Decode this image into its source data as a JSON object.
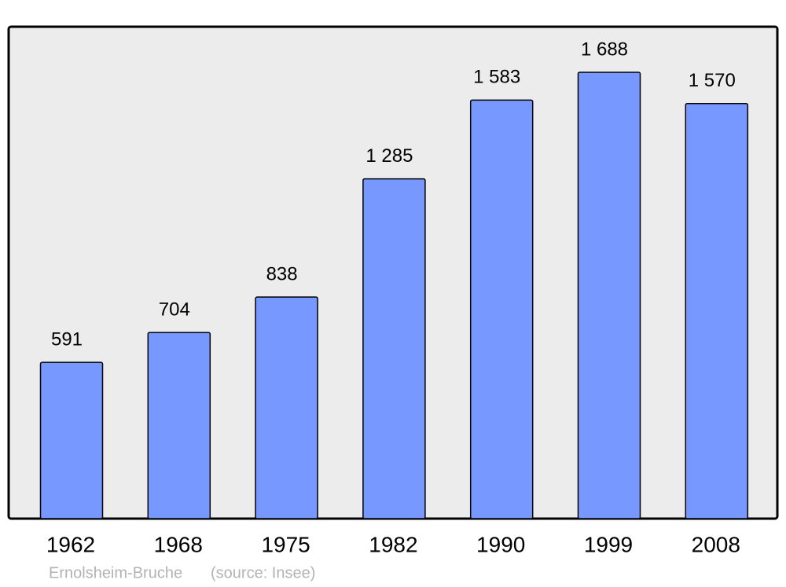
{
  "chart_data": {
    "type": "bar",
    "categories": [
      "1962",
      "1968",
      "1975",
      "1982",
      "1990",
      "1999",
      "2008"
    ],
    "values": [
      591,
      704,
      838,
      1285,
      1583,
      1688,
      1570
    ],
    "value_labels": [
      "591",
      "704",
      "838",
      "1 285",
      "1 583",
      "1 688",
      "1 570"
    ],
    "color": "#7799ff",
    "footer": {
      "place": "Ernolsheim-Bruche",
      "source": "(source: Insee)"
    }
  }
}
